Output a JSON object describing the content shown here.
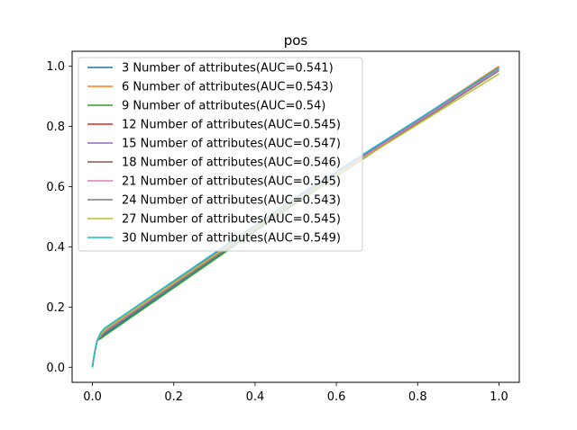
{
  "chart_data": {
    "type": "line",
    "title": "pos",
    "xlabel": "",
    "ylabel": "",
    "xlim": [
      -0.05,
      1.05
    ],
    "ylim": [
      -0.05,
      1.05
    ],
    "xticks": [
      "0.0",
      "0.2",
      "0.4",
      "0.6",
      "0.8",
      "1.0"
    ],
    "yticks": [
      "0.0",
      "0.2",
      "0.4",
      "0.6",
      "0.8",
      "1.0"
    ],
    "grid": false,
    "legend_position": "upper-left",
    "series": [
      {
        "name": "3 Number of attributes(AUC=0.541)",
        "color": "#1f77b4",
        "x": [
          0,
          0.003,
          0.007,
          0.012,
          0.02,
          0.03,
          0.5,
          1.0
        ],
        "y": [
          0,
          0.03,
          0.06,
          0.09,
          0.1,
          0.11,
          0.55,
          1.0
        ]
      },
      {
        "name": "6 Number of attributes(AUC=0.543)",
        "color": "#ff7f0e",
        "x": [
          0,
          0.003,
          0.007,
          0.012,
          0.02,
          0.03,
          0.5,
          1.0
        ],
        "y": [
          0,
          0.03,
          0.06,
          0.09,
          0.105,
          0.115,
          0.555,
          1.0
        ]
      },
      {
        "name": "9 Number of attributes(AUC=0.54)",
        "color": "#2ca02c",
        "x": [
          0,
          0.003,
          0.007,
          0.012,
          0.02,
          0.03,
          0.5,
          1.0
        ],
        "y": [
          0,
          0.03,
          0.06,
          0.09,
          0.095,
          0.105,
          0.545,
          0.99
        ]
      },
      {
        "name": "12 Number of attributes(AUC=0.545)",
        "color": "#d62728",
        "x": [
          0,
          0.003,
          0.007,
          0.012,
          0.02,
          0.03,
          0.5,
          1.0
        ],
        "y": [
          0,
          0.03,
          0.06,
          0.09,
          0.105,
          0.12,
          0.555,
          0.995
        ]
      },
      {
        "name": "15 Number of attributes(AUC=0.547)",
        "color": "#9467bd",
        "x": [
          0,
          0.003,
          0.007,
          0.012,
          0.02,
          0.03,
          0.5,
          1.0
        ],
        "y": [
          0,
          0.03,
          0.06,
          0.09,
          0.11,
          0.125,
          0.56,
          0.995
        ]
      },
      {
        "name": "18 Number of attributes(AUC=0.546)",
        "color": "#8c564b",
        "x": [
          0,
          0.003,
          0.007,
          0.012,
          0.02,
          0.03,
          0.5,
          1.0
        ],
        "y": [
          0,
          0.03,
          0.06,
          0.09,
          0.11,
          0.12,
          0.555,
          0.99
        ]
      },
      {
        "name": "21 Number of attributes(AUC=0.545)",
        "color": "#e377c2",
        "x": [
          0,
          0.003,
          0.007,
          0.012,
          0.02,
          0.03,
          0.5,
          1.0
        ],
        "y": [
          0,
          0.03,
          0.06,
          0.09,
          0.105,
          0.12,
          0.555,
          0.99
        ]
      },
      {
        "name": "24 Number of attributes(AUC=0.543)",
        "color": "#7f7f7f",
        "x": [
          0,
          0.003,
          0.007,
          0.012,
          0.02,
          0.03,
          0.5,
          1.0
        ],
        "y": [
          0,
          0.03,
          0.06,
          0.09,
          0.1,
          0.115,
          0.55,
          0.985
        ]
      },
      {
        "name": "27 Number of attributes(AUC=0.545)",
        "color": "#bcbd22",
        "x": [
          0,
          0.003,
          0.007,
          0.012,
          0.02,
          0.03,
          0.5,
          1.0
        ],
        "y": [
          0,
          0.03,
          0.06,
          0.09,
          0.11,
          0.125,
          0.555,
          0.975
        ]
      },
      {
        "name": "30 Number of attributes(AUC=0.549)",
        "color": "#17becf",
        "x": [
          0,
          0.003,
          0.007,
          0.012,
          0.02,
          0.03,
          0.5,
          1.0
        ],
        "y": [
          0,
          0.03,
          0.06,
          0.09,
          0.115,
          0.13,
          0.565,
          0.995
        ]
      }
    ]
  }
}
